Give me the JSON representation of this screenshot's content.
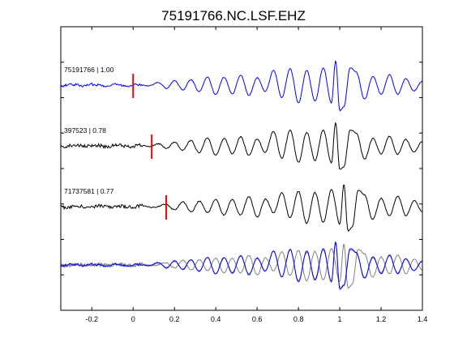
{
  "chart_data": {
    "type": "line",
    "title": "75191766.NC.LSF.EHZ",
    "xlabel": "",
    "ylabel": "",
    "xlim": [
      -0.35,
      1.4
    ],
    "x_ticks": [
      -0.2,
      0,
      0.2,
      0.4,
      0.6,
      0.8,
      1,
      1.2,
      1.4
    ],
    "x_tick_labels": [
      "-0.2",
      "0",
      "0.2",
      "0.4",
      "0.6",
      "0.8",
      "1",
      "1.2",
      "1.4"
    ],
    "y_tick_count": 7,
    "grid": false,
    "colors": {
      "reference": "#0000ff",
      "correlated": "#000000",
      "overlay": "#808080",
      "pick": "#ff0000"
    },
    "traces": [
      {
        "label": "75191766 | 1.00",
        "event_id": "75191766",
        "correlation": 1.0,
        "pick_time": 0.0,
        "shift": 0.0,
        "color": "#0000ff"
      },
      {
        "label": "397523 | 0.78",
        "event_id": "397523",
        "correlation": 0.78,
        "pick_time": 0.09,
        "shift": 0.0,
        "color": "#000000"
      },
      {
        "label": "71737581 | 0.77",
        "event_id": "71737581",
        "correlation": 0.77,
        "pick_time": 0.16,
        "shift": 0.04,
        "color": "#000000"
      }
    ],
    "waveform_peaks": {
      "t": [
        -0.35,
        0.08,
        0.12,
        0.16,
        0.2,
        0.24,
        0.28,
        0.32,
        0.36,
        0.4,
        0.44,
        0.48,
        0.52,
        0.56,
        0.6,
        0.64,
        0.68,
        0.72,
        0.76,
        0.8,
        0.84,
        0.88,
        0.92,
        0.96,
        0.98,
        1.0,
        1.02,
        1.05,
        1.08,
        1.12,
        1.16,
        1.2,
        1.24,
        1.28,
        1.32,
        1.36,
        1.4
      ],
      "amp": [
        0.0,
        0.0,
        0.1,
        -0.15,
        0.25,
        -0.3,
        0.35,
        -0.4,
        0.45,
        -0.5,
        0.4,
        -0.45,
        0.55,
        -0.6,
        0.45,
        -0.4,
        0.85,
        -0.7,
        0.9,
        -0.95,
        0.8,
        -0.9,
        1.0,
        -1.05,
        1.35,
        -1.4,
        -1.2,
        0.95,
        0.7,
        -0.75,
        0.45,
        -0.5,
        0.6,
        -0.55,
        0.4,
        -0.35,
        0.2
      ]
    },
    "overlay_stack": true
  }
}
